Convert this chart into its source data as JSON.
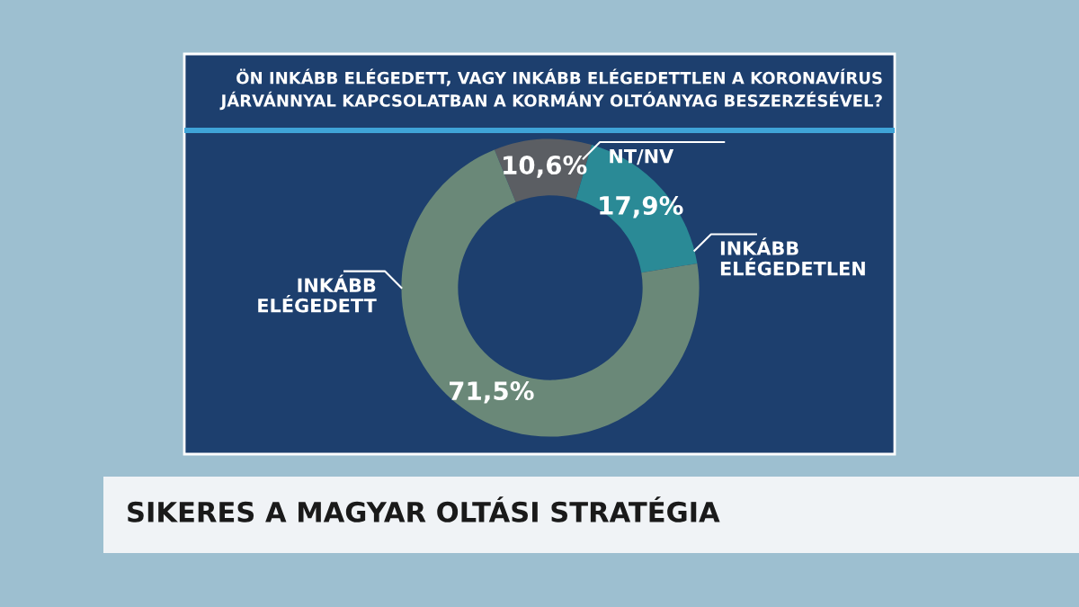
{
  "chart_data": {
    "type": "donut",
    "title": "ÖN INKÁBB ELÉGEDETT, VAGY INKÁBB ELÉGEDETTLEN A KORONAVÍRUS\nJÁRVÁNNYAL KAPCSOLATBAN A KORMÁNY OLTÓANYAG BESZERZÉSÉVEL?",
    "categories": [
      "NT/NV",
      "INKÁBB\nELÉGEDETLEN",
      "INKÁBB\nELÉGEDETT"
    ],
    "values": [
      10.6,
      17.9,
      71.5
    ],
    "value_labels": [
      "10,6%",
      "17,9%",
      "71,5%"
    ],
    "colors": [
      "#5b5e63",
      "#2a8a96",
      "#6a8878"
    ],
    "annotations": [
      "SIKERES A MAGYAR OLTÁSI STRATÉGIA"
    ],
    "legend": false
  }
}
